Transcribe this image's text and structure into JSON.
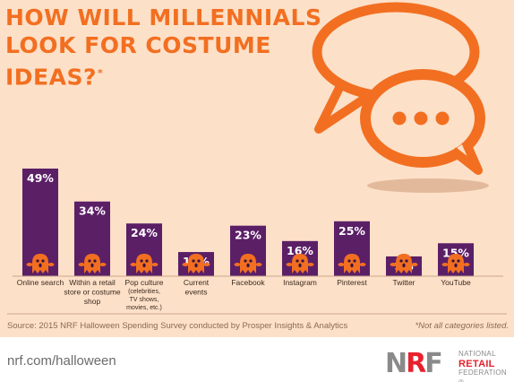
{
  "title": {
    "lines": [
      "HOW WILL MILLENNIALS",
      "LOOK FOR COSTUME",
      "IDEAS?"
    ],
    "asterisk": "*"
  },
  "chart_data": {
    "type": "bar",
    "categories": [
      [
        "Online search"
      ],
      [
        "Within a retail",
        "store or costume",
        "shop"
      ],
      [
        "Pop culture",
        "(celebrities,",
        "TV shows,",
        "movies, etc.)"
      ],
      [
        "Current",
        "events"
      ],
      [
        "Facebook"
      ],
      [
        "Instagram"
      ],
      [
        "Pinterest"
      ],
      [
        "Twitter"
      ],
      [
        "YouTube"
      ]
    ],
    "values": [
      49,
      34,
      24,
      11,
      23,
      16,
      25,
      9,
      15
    ],
    "value_labels": [
      "49%",
      "34%",
      "24%",
      "11%",
      "23%",
      "16%",
      "25%",
      "9%",
      "15%"
    ],
    "unit": "%",
    "ylim": [
      0,
      49
    ],
    "grid": false,
    "legend": "none",
    "bar_color": "#5b1f66",
    "label_color": "#ffffff"
  },
  "colors": {
    "background": "#fde0c8",
    "accent": "#f26f21",
    "bar": "#5b1f66",
    "ghost": "#f26f21",
    "brand_red": "#e8212e"
  },
  "icons": {
    "speech_bubbles": "speech-bubbles-icon",
    "ghost": "ghost-icon"
  },
  "source": "Source: 2015 NRF Halloween Spending Survey conducted by Prosper Insights & Analytics",
  "note": "*Not all categories listed.",
  "footer": {
    "url": "nrf.com/halloween",
    "logo_mark": "NRF",
    "logo_lines": [
      "NATIONAL",
      "RETAIL",
      "FEDERATION"
    ],
    "registered": "®"
  }
}
